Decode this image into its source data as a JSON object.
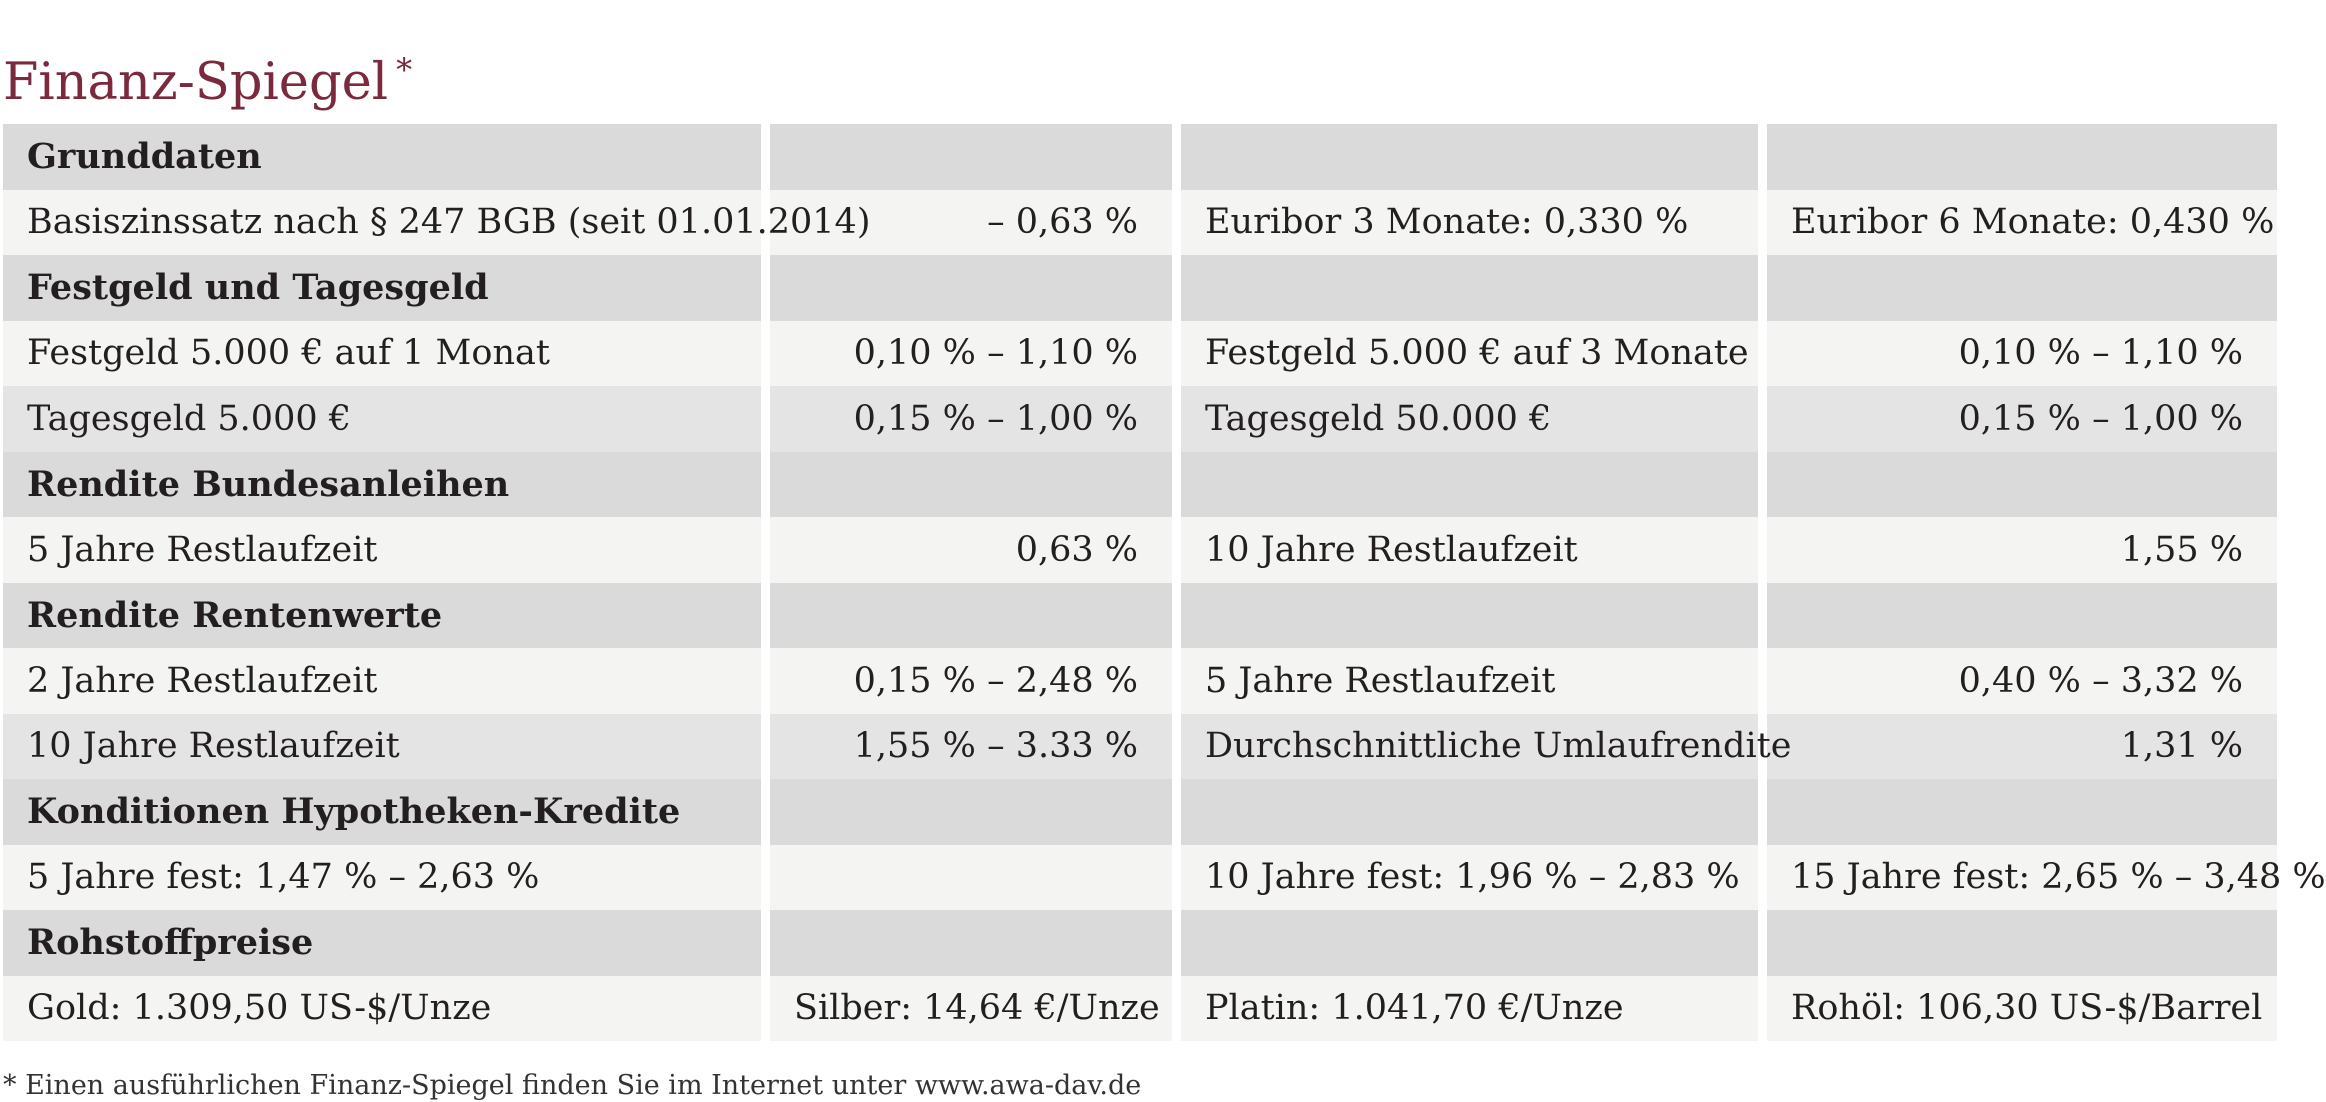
{
  "title": "Finanz-Spiegel",
  "title_marker": "*",
  "footnote": "* Einen ausführlichen Finanz-Spiegel finden Sie im Internet unter www.awa-dav.de",
  "colors": {
    "title": "#7a2a3c",
    "section_bg": "#dadada",
    "row_light": "#f4f4f3",
    "row_dark": "#e4e4e4"
  },
  "sections": [
    {
      "heading": "Grunddaten",
      "rows": [
        [
          "Basiszinssatz nach § 247 BGB (seit 01.01.2014)",
          "– 0,63 %",
          "Euribor 3 Monate: 0,330 %",
          "Euribor 6 Monate: 0,430 %"
        ]
      ]
    },
    {
      "heading": "Festgeld und Tagesgeld",
      "rows": [
        [
          "Festgeld 5.000 € auf 1 Monat",
          "0,10 % – 1,10 %",
          "Festgeld 5.000 € auf 3 Monate",
          "0,10 % – 1,10 %"
        ],
        [
          "Tagesgeld 5.000 €",
          "0,15 % – 1,00 %",
          "Tagesgeld 50.000 €",
          "0,15 % – 1,00 %"
        ]
      ]
    },
    {
      "heading": "Rendite Bundesanleihen",
      "rows": [
        [
          "5 Jahre Restlaufzeit",
          "0,63 %",
          "10 Jahre Restlaufzeit",
          "1,55 %"
        ]
      ]
    },
    {
      "heading": "Rendite Rentenwerte",
      "rows": [
        [
          "2 Jahre Restlaufzeit",
          "0,15 % – 2,48 %",
          "5 Jahre Restlaufzeit",
          "0,40 % – 3,32 %"
        ],
        [
          "10 Jahre Restlaufzeit",
          "1,55 % – 3.33 %",
          "Durchschnittliche Umlaufrendite",
          "1,31 %"
        ]
      ]
    },
    {
      "heading": "Konditionen Hypotheken-Kredite",
      "rows": [
        [
          "5 Jahre fest: 1,47 % – 2,63 %",
          "",
          "10 Jahre fest: 1,96 % – 2,83 %",
          "15 Jahre fest: 2,65 % – 3,48 %"
        ]
      ]
    },
    {
      "heading": "Rohstoffpreise",
      "rows": [
        [
          "Gold: 1.309,50 US-$/Unze",
          "Silber: 14,64 €/Unze",
          "Platin: 1.041,70 €/Unze",
          "Rohöl: 106,30 US-$/Barrel"
        ]
      ]
    }
  ]
}
